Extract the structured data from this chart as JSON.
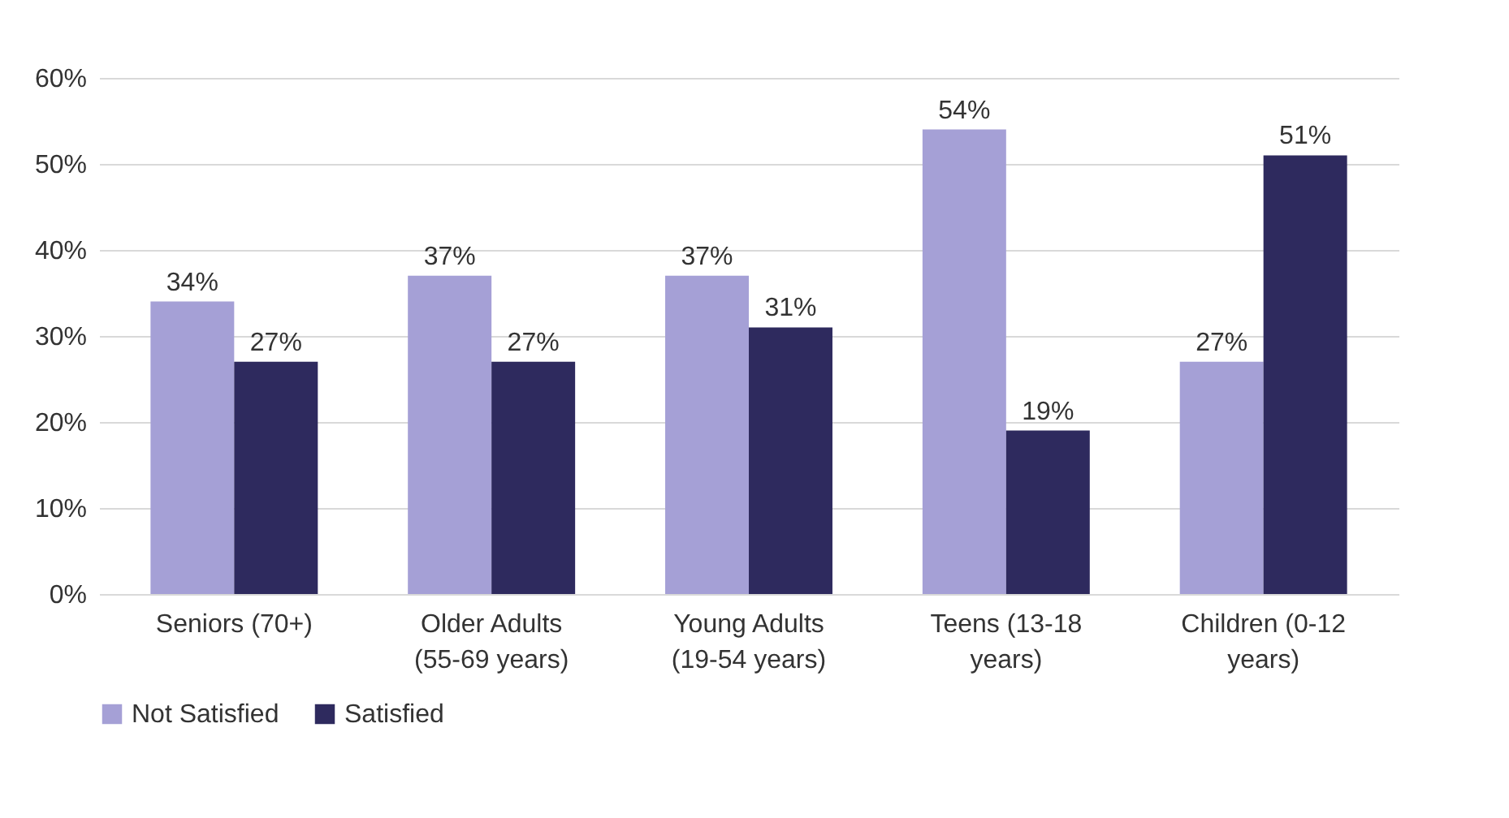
{
  "chart_data": {
    "type": "bar",
    "categories": [
      "Seniors (70+)",
      "Older Adults (55-69 years)",
      "Young Adults (19-54 years)",
      "Teens (13-18 years)",
      "Children (0-12 years)"
    ],
    "series": [
      {
        "name": "Not Satisfied",
        "color": "#a5a0d6",
        "values": [
          34,
          37,
          37,
          54,
          27
        ],
        "value_labels": [
          "34%",
          "37%",
          "37%",
          "54%",
          "27%"
        ]
      },
      {
        "name": "Satisfied",
        "color": "#2e2a5e",
        "values": [
          27,
          27,
          31,
          19,
          51
        ],
        "value_labels": [
          "27%",
          "27%",
          "31%",
          "19%",
          "51%"
        ]
      }
    ],
    "ylim": [
      0,
      60
    ],
    "yticks": [
      {
        "value": 0,
        "label": "0%"
      },
      {
        "value": 10,
        "label": "10%"
      },
      {
        "value": 20,
        "label": "20%"
      },
      {
        "value": 30,
        "label": "30%"
      },
      {
        "value": 40,
        "label": "40%"
      },
      {
        "value": 50,
        "label": "50%"
      },
      {
        "value": 60,
        "label": "60%"
      }
    ],
    "grid": "y",
    "legend": "bottom"
  }
}
